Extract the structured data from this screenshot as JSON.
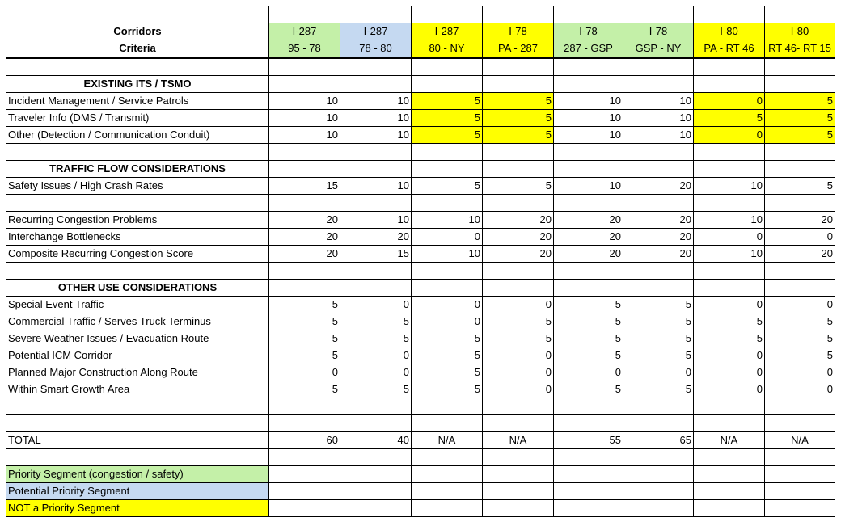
{
  "header": {
    "corridors": "Corridors",
    "criteria": "Criteria",
    "columns": [
      {
        "route": "I-287",
        "segment": "95 - 78",
        "color": "#c4f0a8"
      },
      {
        "route": "I-287",
        "segment": "78 - 80",
        "color": "#c5d9f1"
      },
      {
        "route": "I-287",
        "segment": "80 - NY",
        "color": "#ffff00"
      },
      {
        "route": "I-78",
        "segment": "PA - 287",
        "color": "#ffff00"
      },
      {
        "route": "I-78",
        "segment": "287 - GSP",
        "color": "#c4f0a8"
      },
      {
        "route": "I-78",
        "segment": "GSP - NY",
        "color": "#c4f0a8"
      },
      {
        "route": "I-80",
        "segment": "PA - RT 46",
        "color": "#ffff00"
      },
      {
        "route": "I-80",
        "segment": "RT 46- RT 15",
        "color": "#ffff00"
      }
    ]
  },
  "sections": [
    {
      "title": "EXISTING ITS / TSMO",
      "groups": [
        [
          {
            "label": "Incident Management / Service Patrols",
            "values": [
              10,
              10,
              5,
              5,
              10,
              10,
              0,
              5
            ]
          },
          {
            "label": "Traveler Info (DMS / Transmit)",
            "values": [
              10,
              10,
              5,
              5,
              10,
              10,
              5,
              5
            ]
          },
          {
            "label": "Other (Detection / Communication Conduit)",
            "values": [
              10,
              10,
              5,
              5,
              10,
              10,
              0,
              5
            ]
          }
        ]
      ]
    },
    {
      "title": "TRAFFIC FLOW CONSIDERATIONS",
      "groups": [
        [
          {
            "label": "Safety Issues / High Crash Rates",
            "values": [
              15,
              10,
              5,
              5,
              10,
              20,
              10,
              5
            ]
          }
        ],
        [
          {
            "label": "Recurring Congestion Problems",
            "values": [
              20,
              10,
              10,
              20,
              20,
              20,
              10,
              20
            ]
          },
          {
            "label": "Interchange Bottlenecks",
            "values": [
              20,
              20,
              0,
              20,
              20,
              20,
              0,
              0
            ]
          },
          {
            "label": "Composite Recurring Congestion Score",
            "values": [
              20,
              15,
              10,
              20,
              20,
              20,
              10,
              20
            ]
          }
        ]
      ]
    },
    {
      "title": "OTHER USE CONSIDERATIONS",
      "groups": [
        [
          {
            "label": "Special Event Traffic",
            "values": [
              5,
              0,
              0,
              0,
              5,
              5,
              0,
              0
            ]
          },
          {
            "label": "Commercial Traffic / Serves Truck Terminus",
            "values": [
              5,
              5,
              0,
              5,
              5,
              5,
              5,
              5
            ]
          },
          {
            "label": "Severe Weather Issues / Evacuation Route",
            "values": [
              5,
              5,
              5,
              5,
              5,
              5,
              5,
              5
            ]
          },
          {
            "label": "Potential ICM Corridor",
            "values": [
              5,
              0,
              5,
              0,
              5,
              5,
              0,
              5
            ]
          },
          {
            "label": "Planned Major Construction Along Route",
            "values": [
              0,
              0,
              5,
              0,
              0,
              0,
              0,
              0
            ]
          },
          {
            "label": "Within Smart Growth Area",
            "values": [
              5,
              5,
              5,
              0,
              5,
              5,
              0,
              0
            ]
          }
        ]
      ]
    }
  ],
  "total": {
    "label": "TOTAL",
    "values": [
      60,
      40,
      "N/A",
      "N/A",
      55,
      65,
      "N/A",
      "N/A"
    ]
  },
  "legend": [
    {
      "label": "Priority Segment (congestion / safety)",
      "color": "#c4f0a8"
    },
    {
      "label": "Potential Priority Segment",
      "color": "#c5d9f1"
    },
    {
      "label": "NOT a Priority Segment",
      "color": "#ffff00"
    }
  ]
}
